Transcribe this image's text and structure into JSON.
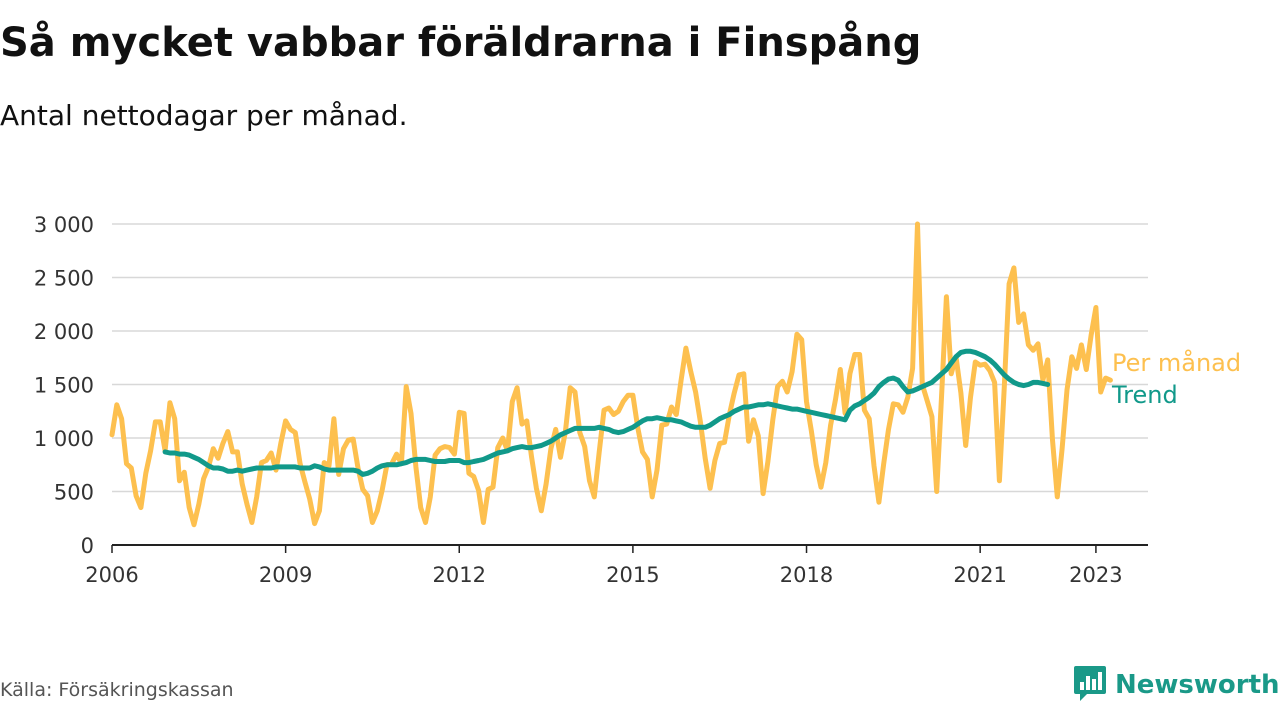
{
  "title": "Så mycket vabbar föräldrarna i Finspång",
  "subtitle": "Antal nettodagar per månad.",
  "source": "Källa: Försäkringskassan",
  "brand": {
    "name": "Newsworthy",
    "icon": "newsworthy-logo-icon",
    "color": "#1a9988"
  },
  "chart_data": {
    "type": "line",
    "title": "Så mycket vabbar föräldrarna i Finspång",
    "subtitle": "Antal nettodagar per månad.",
    "xlabel": "",
    "ylabel": "",
    "ylim": [
      0,
      3000
    ],
    "yticks": [
      0,
      500,
      1000,
      1500,
      2000,
      2500,
      3000
    ],
    "ytick_labels": [
      "0",
      "500",
      "1 000",
      "1 500",
      "2 000",
      "2 500",
      "3 000"
    ],
    "xlim": [
      2006,
      2023.9
    ],
    "xticks": [
      2006,
      2009,
      2012,
      2015,
      2018,
      2021,
      2023
    ],
    "xtick_labels": [
      "2006",
      "2009",
      "2012",
      "2015",
      "2018",
      "2021",
      "2023"
    ],
    "grid": "horizontal",
    "legend": "right, labels placed at line ends",
    "x_start": "2006-01",
    "x_frequency": "monthly",
    "series": [
      {
        "name": "Per månad",
        "color": "#fdc04f",
        "start": "2006-01",
        "values": [
          1030,
          1310,
          1180,
          760,
          720,
          460,
          350,
          670,
          880,
          1150,
          1150,
          880,
          1330,
          1180,
          600,
          680,
          350,
          190,
          380,
          620,
          730,
          900,
          810,
          950,
          1060,
          870,
          870,
          570,
          380,
          210,
          450,
          770,
          790,
          860,
          700,
          950,
          1160,
          1080,
          1050,
          760,
          590,
          430,
          200,
          320,
          770,
          740,
          1180,
          660,
          900,
          980,
          990,
          720,
          520,
          460,
          210,
          320,
          510,
          750,
          760,
          850,
          760,
          1480,
          1230,
          730,
          350,
          210,
          450,
          840,
          900,
          920,
          910,
          850,
          1240,
          1230,
          670,
          640,
          510,
          210,
          520,
          540,
          910,
          1000,
          880,
          1340,
          1470,
          1130,
          1160,
          820,
          530,
          320,
          570,
          900,
          1080,
          820,
          1060,
          1470,
          1430,
          1050,
          920,
          600,
          450,
          860,
          1260,
          1280,
          1220,
          1250,
          1340,
          1400,
          1400,
          1100,
          870,
          800,
          450,
          700,
          1120,
          1130,
          1290,
          1220,
          1540,
          1840,
          1620,
          1430,
          1150,
          810,
          530,
          790,
          950,
          960,
          1220,
          1420,
          1590,
          1600,
          970,
          1170,
          1020,
          480,
          780,
          1170,
          1480,
          1530,
          1430,
          1620,
          1970,
          1920,
          1340,
          1070,
          750,
          540,
          770,
          1120,
          1360,
          1640,
          1230,
          1600,
          1780,
          1780,
          1260,
          1180,
          740,
          400,
          760,
          1080,
          1320,
          1310,
          1240,
          1380,
          1650,
          3000,
          1500,
          1350,
          1200,
          500,
          1400,
          2320,
          1600,
          1760,
          1420,
          930,
          1380,
          1710,
          1680,
          1690,
          1630,
          1520,
          600,
          1480,
          2440,
          2590,
          2080,
          2160,
          1870,
          1820,
          1880,
          1540,
          1730,
          980,
          450,
          900,
          1450,
          1760,
          1650,
          1870,
          1640,
          1960,
          2220,
          1430,
          1560,
          1540
        ]
      },
      {
        "name": "Trend",
        "color": "#11998a",
        "start": "2006-12",
        "values": [
          870,
          860,
          860,
          850,
          850,
          840,
          820,
          800,
          770,
          740,
          720,
          720,
          710,
          690,
          690,
          700,
          690,
          700,
          710,
          720,
          720,
          720,
          720,
          730,
          730,
          730,
          730,
          730,
          720,
          720,
          720,
          740,
          730,
          710,
          700,
          700,
          700,
          700,
          700,
          700,
          690,
          660,
          670,
          690,
          720,
          740,
          750,
          750,
          750,
          760,
          770,
          790,
          800,
          800,
          800,
          790,
          780,
          780,
          780,
          790,
          790,
          790,
          770,
          770,
          780,
          790,
          800,
          820,
          840,
          860,
          870,
          880,
          900,
          910,
          920,
          910,
          910,
          920,
          930,
          950,
          970,
          1000,
          1030,
          1050,
          1070,
          1090,
          1090,
          1090,
          1090,
          1090,
          1100,
          1090,
          1080,
          1060,
          1050,
          1060,
          1080,
          1100,
          1130,
          1160,
          1180,
          1180,
          1190,
          1180,
          1170,
          1170,
          1160,
          1150,
          1130,
          1110,
          1100,
          1100,
          1100,
          1120,
          1150,
          1180,
          1200,
          1220,
          1250,
          1270,
          1290,
          1290,
          1300,
          1310,
          1310,
          1320,
          1310,
          1300,
          1290,
          1280,
          1270,
          1270,
          1260,
          1250,
          1240,
          1230,
          1220,
          1210,
          1200,
          1190,
          1180,
          1170,
          1260,
          1300,
          1320,
          1350,
          1380,
          1420,
          1480,
          1520,
          1550,
          1560,
          1540,
          1480,
          1430,
          1440,
          1460,
          1480,
          1500,
          1520,
          1560,
          1600,
          1640,
          1700,
          1760,
          1800,
          1810,
          1810,
          1800,
          1780,
          1760,
          1730,
          1690,
          1640,
          1590,
          1550,
          1520,
          1500,
          1490,
          1500,
          1520,
          1520,
          1510,
          1500
        ]
      }
    ]
  }
}
